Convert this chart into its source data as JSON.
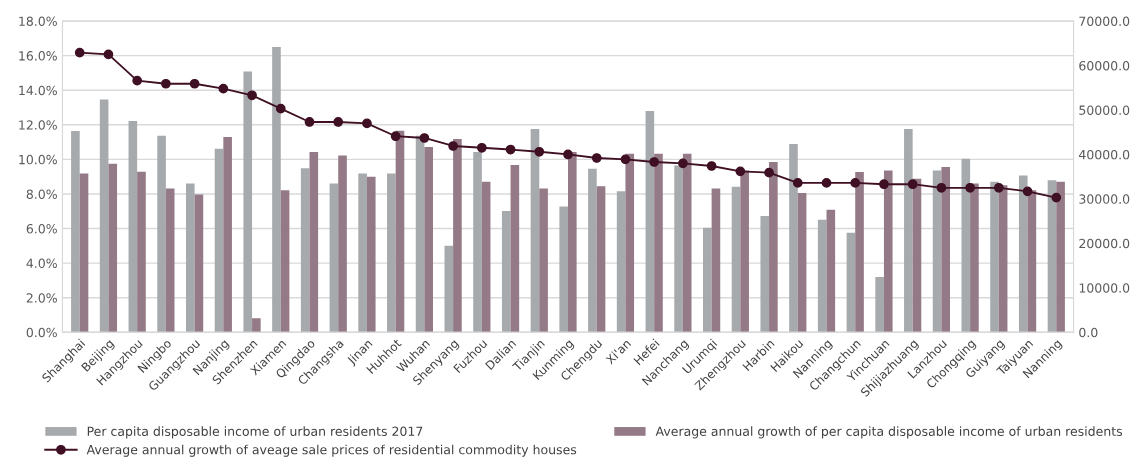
{
  "chart_data": {
    "type": "bar",
    "categories": [
      "Shanghai",
      "Beijing",
      "Hangzhou",
      "Ningbo",
      "Guangzhou",
      "Nanjing",
      "Shenzhen",
      "Xiamen",
      "Qingdao",
      "Changsha",
      "Jinan",
      "Huhhot",
      "Wuhan",
      "Shenyang",
      "Fuzhou",
      "Dalian",
      "Tianjin",
      "Kunming",
      "Chengdu",
      "Xi'an",
      "Hefei",
      "Nanchang",
      "Urumqi",
      "Zhengzhou",
      "Harbin",
      "Haikou",
      "Nanning",
      "Changchun",
      "Yinchuan",
      "Shijiazhuang",
      "Lanzhou",
      "Chongqing",
      "Guiyang",
      "Taiyuan",
      "Nanning"
    ],
    "series": [
      {
        "name": "Per capita disposable income of urban residents 2017",
        "color": "#a7aaad",
        "values": [
          11.64,
          13.46,
          12.22,
          11.37,
          8.61,
          10.62,
          15.08,
          16.5,
          9.48,
          8.61,
          9.19,
          9.19,
          11.37,
          5.0,
          10.42,
          7.01,
          11.76,
          7.28,
          9.46,
          8.15,
          12.8,
          9.65,
          6.04,
          8.42,
          6.72,
          10.89,
          6.51,
          5.75,
          3.19,
          11.76,
          9.36,
          10.04,
          8.71,
          9.07,
          8.8
        ]
      },
      {
        "name": "Average annual growth of per capita disposable income of urban residents",
        "color": "#947a86",
        "values": [
          9.19,
          9.75,
          9.29,
          8.32,
          7.97,
          11.29,
          0.81,
          8.22,
          10.42,
          10.23,
          9.0,
          11.66,
          10.71,
          11.18,
          8.71,
          9.67,
          8.32,
          10.42,
          8.44,
          10.33,
          10.33,
          10.33,
          8.32,
          9.36,
          9.85,
          8.05,
          7.08,
          9.27,
          9.36,
          8.88,
          9.56,
          8.61,
          8.51,
          8.22,
          8.71
        ]
      },
      {
        "name": "Average annual growth of aveage sale prices of residential commodity houses",
        "type": "line",
        "axis": "y2",
        "color": "#3f0f23",
        "marker": "circle",
        "line_style": "solid",
        "values": [
          62900,
          62500,
          56600,
          55900,
          55900,
          54800,
          53300,
          50300,
          47300,
          47300,
          47000,
          44100,
          43700,
          41900,
          41500,
          41100,
          40600,
          40000,
          39200,
          38900,
          38300,
          38000,
          37400,
          36200,
          35900,
          33600,
          33600,
          33600,
          33300,
          33300,
          32500,
          32500,
          32500,
          31700,
          30300
        ]
      }
    ],
    "ylim": [
      0,
      18
    ],
    "yticks": [
      {
        "value": 0,
        "label": "0.0%"
      },
      {
        "value": 2,
        "label": "2.0%"
      },
      {
        "value": 4,
        "label": "4.0%"
      },
      {
        "value": 6,
        "label": "6.0%"
      },
      {
        "value": 8,
        "label": "8.0%"
      },
      {
        "value": 10,
        "label": "10.0%"
      },
      {
        "value": 12,
        "label": "12.0%"
      },
      {
        "value": 14,
        "label": "14.0%"
      },
      {
        "value": 16,
        "label": "16.0%"
      },
      {
        "value": 18,
        "label": "18.0%"
      }
    ],
    "y2lim": [
      0,
      70000
    ],
    "y2ticks": [
      {
        "value": 0,
        "label": "0.0"
      },
      {
        "value": 10000,
        "label": "10000.0"
      },
      {
        "value": 20000,
        "label": "20000.0"
      },
      {
        "value": 30000,
        "label": "30000.0"
      },
      {
        "value": 40000,
        "label": "40000.0"
      },
      {
        "value": 50000,
        "label": "50000.0"
      },
      {
        "value": 60000,
        "label": "60000.0"
      },
      {
        "value": 70000,
        "label": "70000.0"
      }
    ],
    "grid": "y",
    "legend": "bottom"
  }
}
